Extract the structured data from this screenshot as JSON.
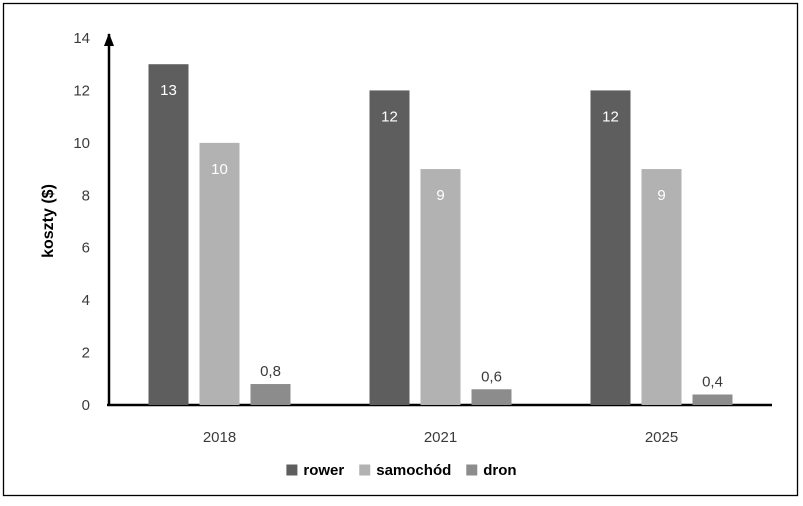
{
  "chart_data": {
    "type": "bar",
    "title": "",
    "xlabel": "",
    "ylabel": "koszty ($)",
    "ylim": [
      0,
      14
    ],
    "yticks": [
      0,
      2,
      4,
      6,
      8,
      10,
      12,
      14
    ],
    "categories": [
      "2018",
      "2021",
      "2025"
    ],
    "series": [
      {
        "name": "rower",
        "values": [
          13,
          12,
          12
        ],
        "labels": [
          "13",
          "12",
          "12"
        ],
        "color": "#5e5e5e",
        "label_color": "#ffffff"
      },
      {
        "name": "samochód",
        "values": [
          10,
          9,
          9
        ],
        "labels": [
          "10",
          "9",
          "9"
        ],
        "color": "#b2b2b2",
        "label_color": "#ffffff"
      },
      {
        "name": "dron",
        "values": [
          0.8,
          0.6,
          0.4
        ],
        "labels": [
          "0,8",
          "0,6",
          "0,4"
        ],
        "color": "#8c8c8c",
        "label_color": "#3b3b3b"
      }
    ],
    "grid": false,
    "legend": "bottom",
    "data_labels": true
  }
}
